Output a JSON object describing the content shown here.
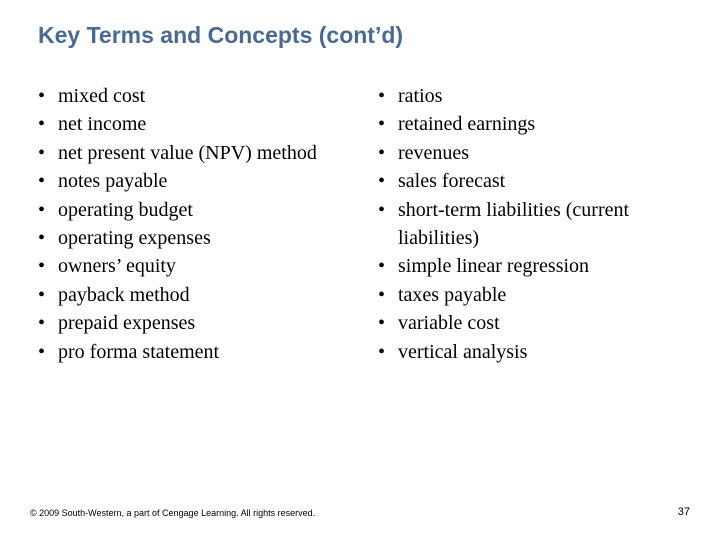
{
  "title": "Key Terms and Concepts (cont’d)",
  "title_color": "#4a6a92",
  "title_fontsize": 23,
  "title_font_family": "Verdana, Geneva, sans-serif",
  "body_font_family": "Times New Roman, Times, serif",
  "body_fontsize": 20,
  "body_color": "#000000",
  "background_color": "#ffffff",
  "left_column": [
    "mixed cost",
    "net income",
    "net present value (NPV) method",
    "notes payable",
    "operating budget",
    "operating expenses",
    "owners’ equity",
    "payback method",
    "prepaid expenses",
    "pro forma statement"
  ],
  "right_column": [
    "ratios",
    "retained earnings",
    "revenues",
    "sales forecast",
    "short-term liabilities (current liabilities)",
    "simple linear regression",
    "taxes payable",
    "variable cost",
    "vertical analysis"
  ],
  "footer": "© 2009 South-Western, a part of Cengage Learning. All rights reserved.",
  "footer_fontsize": 9,
  "page_number": "37",
  "page_number_fontsize": 11
}
